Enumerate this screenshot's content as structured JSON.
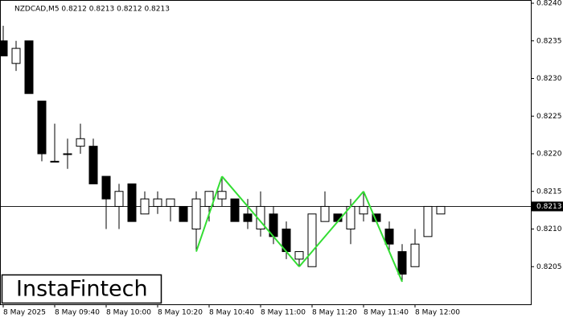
{
  "chart_data": {
    "type": "candlestick",
    "title": "NZDCAD,M5  0.8212 0.8213 0.8212 0.8213",
    "logo": "InstaFintech",
    "categories": [
      "8 May 2025",
      null,
      null,
      null,
      "8 May 09:40",
      null,
      null,
      null,
      "8 May 10:00",
      null,
      null,
      null,
      "8 May 10:20",
      null,
      null,
      null,
      "8 May 10:40",
      null,
      null,
      null,
      "8 May 11:00",
      null,
      null,
      null,
      "8 May 11:20",
      null,
      null,
      null,
      "8 May 11:40",
      null,
      null,
      null,
      "8 May 12:00",
      null,
      null
    ],
    "open": [
      0.8235,
      0.8232,
      0.8235,
      0.8227,
      0.8219,
      0.822,
      0.8221,
      0.8221,
      0.8217,
      0.8213,
      0.8216,
      0.8212,
      0.8213,
      0.8213,
      0.8213,
      0.821,
      0.8213,
      0.8214,
      0.8214,
      0.8212,
      0.821,
      0.8212,
      0.821,
      0.8206,
      0.8205,
      0.8211,
      0.8212,
      0.821,
      0.8212,
      0.8212,
      0.821,
      0.8207,
      0.8205,
      0.8209,
      0.8212
    ],
    "high": [
      0.8237,
      0.8235,
      0.8235,
      0.8227,
      0.8224,
      0.8222,
      0.8224,
      0.8222,
      0.8217,
      0.8216,
      0.8216,
      0.8215,
      0.8215,
      0.8214,
      0.8213,
      0.8215,
      0.8215,
      0.8217,
      0.8214,
      0.8214,
      0.8215,
      0.8213,
      0.8211,
      0.8207,
      0.8212,
      0.8215,
      0.8212,
      0.8214,
      0.8215,
      0.8212,
      0.8211,
      0.8208,
      0.821,
      0.8213,
      0.8213
    ],
    "low": [
      0.8233,
      0.8231,
      0.8228,
      0.8219,
      0.8219,
      0.8218,
      0.822,
      0.8216,
      0.821,
      0.821,
      0.8211,
      0.8212,
      0.8212,
      0.8211,
      0.8211,
      0.8207,
      0.8211,
      0.8213,
      0.8211,
      0.821,
      0.8209,
      0.8208,
      0.8206,
      0.8205,
      0.8205,
      0.8211,
      0.8211,
      0.8208,
      0.8211,
      0.8211,
      0.8207,
      0.8203,
      0.8205,
      0.8209,
      0.8212
    ],
    "close": [
      0.8233,
      0.8234,
      0.8228,
      0.822,
      0.8219,
      0.822,
      0.8222,
      0.8216,
      0.8214,
      0.8215,
      0.8211,
      0.8214,
      0.8214,
      0.8214,
      0.8211,
      0.8214,
      0.8215,
      0.8215,
      0.8211,
      0.8211,
      0.8213,
      0.8209,
      0.8207,
      0.8207,
      0.8212,
      0.8213,
      0.8211,
      0.8213,
      0.8213,
      0.8211,
      0.8208,
      0.8204,
      0.8208,
      0.8213,
      0.8213
    ],
    "up_color": "#ffffff",
    "down_color": "#000000",
    "last_price": 0.8213,
    "pattern": {
      "color": "#33dd33",
      "points": [
        {
          "index": 15,
          "price": 0.8207
        },
        {
          "index": 17,
          "price": 0.8217
        },
        {
          "index": 23,
          "price": 0.8205
        },
        {
          "index": 28,
          "price": 0.8215
        },
        {
          "index": 31,
          "price": 0.8203
        }
      ]
    },
    "ylim": [
      0.82,
      0.824
    ],
    "yticks": [
      0.8205,
      {
        "value": 0.821,
        "label": "0.8210"
      },
      0.8215,
      {
        "value": 0.822,
        "label": "0.8220"
      },
      0.8225,
      {
        "value": 0.823,
        "label": "0.8230"
      },
      0.8235,
      {
        "value": 0.824,
        "label": "0.8240"
      }
    ]
  }
}
